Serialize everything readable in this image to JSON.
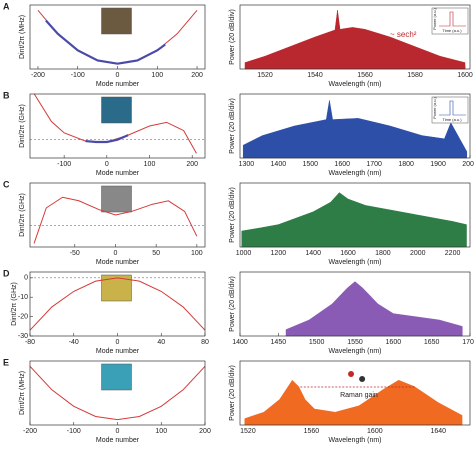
{
  "chart_data": [
    {
      "type": "line",
      "panel_label": "A",
      "x_label": "Mode number",
      "y_label": "Dint/2π (MHz)",
      "xlim": [
        -220,
        220
      ],
      "xticks": [
        -200,
        -100,
        0,
        100,
        200
      ],
      "ylim": [
        -1,
        11
      ],
      "zero_line": false,
      "series": [
        {
          "color": "#d43a3a",
          "x": [
            -200,
            -150,
            -100,
            -50,
            0,
            50,
            100,
            150,
            200
          ],
          "values": [
            10,
            5.6,
            2.5,
            0.6,
            0,
            0.6,
            2.5,
            5.6,
            10
          ]
        },
        {
          "color": "#4a4aa8",
          "x": [
            -180,
            -150,
            -100,
            -50,
            0,
            50,
            100,
            120
          ],
          "values": [
            8.1,
            5.6,
            2.5,
            0.6,
            0,
            0.6,
            2.5,
            3.6
          ]
        }
      ]
    },
    {
      "type": "area",
      "x_label": "Wavelength (nm)",
      "y_label": "Power (20 dB/div)",
      "xlim": [
        1510,
        1602
      ],
      "xticks": [
        1520,
        1540,
        1560,
        1580,
        1600
      ],
      "ylim": [
        0,
        10
      ],
      "annotation": "~ sech²",
      "inset_x_label": "Time (a.u.)",
      "inset_y_label": "Power (a.u.)",
      "series": [
        {
          "color": "#b8282e",
          "x": [
            1512,
            1520,
            1530,
            1540,
            1548,
            1549,
            1550,
            1555,
            1560,
            1570,
            1580,
            1590,
            1600
          ],
          "values": [
            1,
            2,
            3.5,
            5,
            6.1,
            9.2,
            6.2,
            6.5,
            6.2,
            5,
            3.5,
            2,
            1
          ]
        }
      ]
    },
    {
      "type": "line",
      "panel_label": "B",
      "x_label": "Mode number",
      "y_label": "Dint/2π (GHz)",
      "xlim": [
        -180,
        230
      ],
      "xticks": [
        -100,
        0,
        100,
        200
      ],
      "ylim": [
        -4,
        10
      ],
      "zero_line": true,
      "series": [
        {
          "color": "#d43a3a",
          "x": [
            -170,
            -130,
            -100,
            -50,
            0,
            50,
            100,
            140,
            180,
            210
          ],
          "values": [
            10,
            4,
            1.5,
            -0.3,
            -0.5,
            1,
            3,
            3.8,
            2,
            -3
          ]
        },
        {
          "color": "#4a4aa8",
          "x": [
            -50,
            -25,
            0,
            25,
            50
          ],
          "values": [
            -0.3,
            -0.5,
            -0.5,
            0,
            1
          ]
        }
      ]
    },
    {
      "type": "area",
      "x_label": "Wavelength (nm)",
      "y_label": "Power (20 dB/div)",
      "xlim": [
        1280,
        2000
      ],
      "xticks": [
        1300,
        1400,
        1500,
        1600,
        1700,
        1800,
        1900,
        2000
      ],
      "ylim": [
        0,
        10
      ],
      "inset_x_label": "Time (a.u.)",
      "inset_y_label": "Power (a.u.)",
      "series": [
        {
          "color": "#2d4fa8",
          "x": [
            1290,
            1350,
            1450,
            1550,
            1560,
            1570,
            1650,
            1750,
            1850,
            1920,
            1940,
            1990
          ],
          "values": [
            2,
            3.5,
            5,
            6,
            9,
            6,
            6.2,
            5,
            3.5,
            3,
            5.5,
            1
          ]
        }
      ]
    },
    {
      "type": "line",
      "panel_label": "C",
      "x_label": "Mode number",
      "y_label": "Dint/2π (GHz)",
      "xlim": [
        -105,
        110
      ],
      "xticks": [
        -50,
        0,
        50,
        100
      ],
      "ylim": [
        -6,
        12
      ],
      "zero_line": true,
      "series": [
        {
          "color": "#d43a3a",
          "x": [
            -100,
            -85,
            -65,
            -45,
            -20,
            0,
            20,
            45,
            65,
            85,
            100
          ],
          "values": [
            -5,
            5,
            8,
            7,
            4.5,
            3,
            4,
            6,
            7,
            4,
            -3
          ]
        }
      ]
    },
    {
      "type": "area",
      "x_label": "Wavelength (nm)",
      "y_label": "Power (20 dB/div)",
      "xlim": [
        980,
        2300
      ],
      "xticks": [
        1000,
        1200,
        1400,
        1600,
        1800,
        2000,
        2200
      ],
      "ylim": [
        0,
        10
      ],
      "series": [
        {
          "color": "#2e7d46",
          "x": [
            990,
            1100,
            1200,
            1300,
            1400,
            1500,
            1550,
            1600,
            1700,
            1800,
            1900,
            2000,
            2100,
            2200,
            2280
          ],
          "values": [
            2.5,
            3,
            3.5,
            4.5,
            5.5,
            7,
            8.5,
            7.5,
            6.5,
            6,
            5.5,
            5,
            4.5,
            4,
            3.5
          ]
        }
      ]
    },
    {
      "type": "line",
      "panel_label": "D",
      "x_label": "Mode number",
      "y_label": "Dint/2π (GHz)",
      "xlim": [
        -80,
        80
      ],
      "xticks": [
        -80,
        -40,
        0,
        40,
        80
      ],
      "ylim": [
        -30,
        3
      ],
      "yticks": [
        -30,
        -20,
        -10,
        0
      ],
      "zero_line": true,
      "series": [
        {
          "color": "#d43a3a",
          "x": [
            -80,
            -60,
            -40,
            -20,
            0,
            20,
            40,
            60,
            80
          ],
          "values": [
            -27,
            -15,
            -7,
            -1.7,
            0,
            -1.7,
            -7,
            -15,
            -27
          ]
        }
      ]
    },
    {
      "type": "area",
      "x_label": "Wavelength (nm)",
      "y_label": "Power (20 dB/div)",
      "xlim": [
        1400,
        1700
      ],
      "xticks": [
        1400,
        1450,
        1500,
        1550,
        1600,
        1650,
        1700
      ],
      "ylim": [
        0,
        10
      ],
      "series": [
        {
          "color": "#8a5bb5",
          "x": [
            1460,
            1490,
            1520,
            1540,
            1550,
            1560,
            1580,
            1600,
            1630,
            1660,
            1690
          ],
          "values": [
            1,
            2.5,
            5,
            7.5,
            8.5,
            7.5,
            5,
            3.5,
            3,
            2.5,
            1.5
          ]
        }
      ]
    },
    {
      "type": "line",
      "panel_label": "E",
      "x_label": "Mode number",
      "y_label": "Dint/2π (MHz)",
      "xlim": [
        -200,
        200
      ],
      "xticks": [
        -200,
        -100,
        0,
        100,
        200
      ],
      "ylim": [
        -1,
        11
      ],
      "zero_line": false,
      "series": [
        {
          "color": "#d43a3a",
          "x": [
            -200,
            -150,
            -100,
            -50,
            0,
            50,
            100,
            150,
            200
          ],
          "values": [
            10,
            5.6,
            2.5,
            0.6,
            0,
            0.6,
            2.5,
            5.6,
            10
          ]
        }
      ]
    },
    {
      "type": "area",
      "x_label": "Wavelength (nm)",
      "y_label": "Power (20 dB/div)",
      "xlim": [
        1515,
        1660
      ],
      "xticks": [
        1520,
        1560,
        1600,
        1640
      ],
      "ylim": [
        0,
        10
      ],
      "annotation": "Raman gain",
      "series": [
        {
          "color": "#f06a22",
          "x": [
            1518,
            1530,
            1540,
            1548,
            1552,
            1556,
            1562,
            1575,
            1590,
            1605,
            1615,
            1625,
            1640,
            1655
          ],
          "values": [
            1,
            2,
            4,
            7,
            6,
            4,
            2.5,
            2,
            3,
            5.5,
            7,
            6,
            3.5,
            1.5
          ]
        }
      ]
    }
  ]
}
